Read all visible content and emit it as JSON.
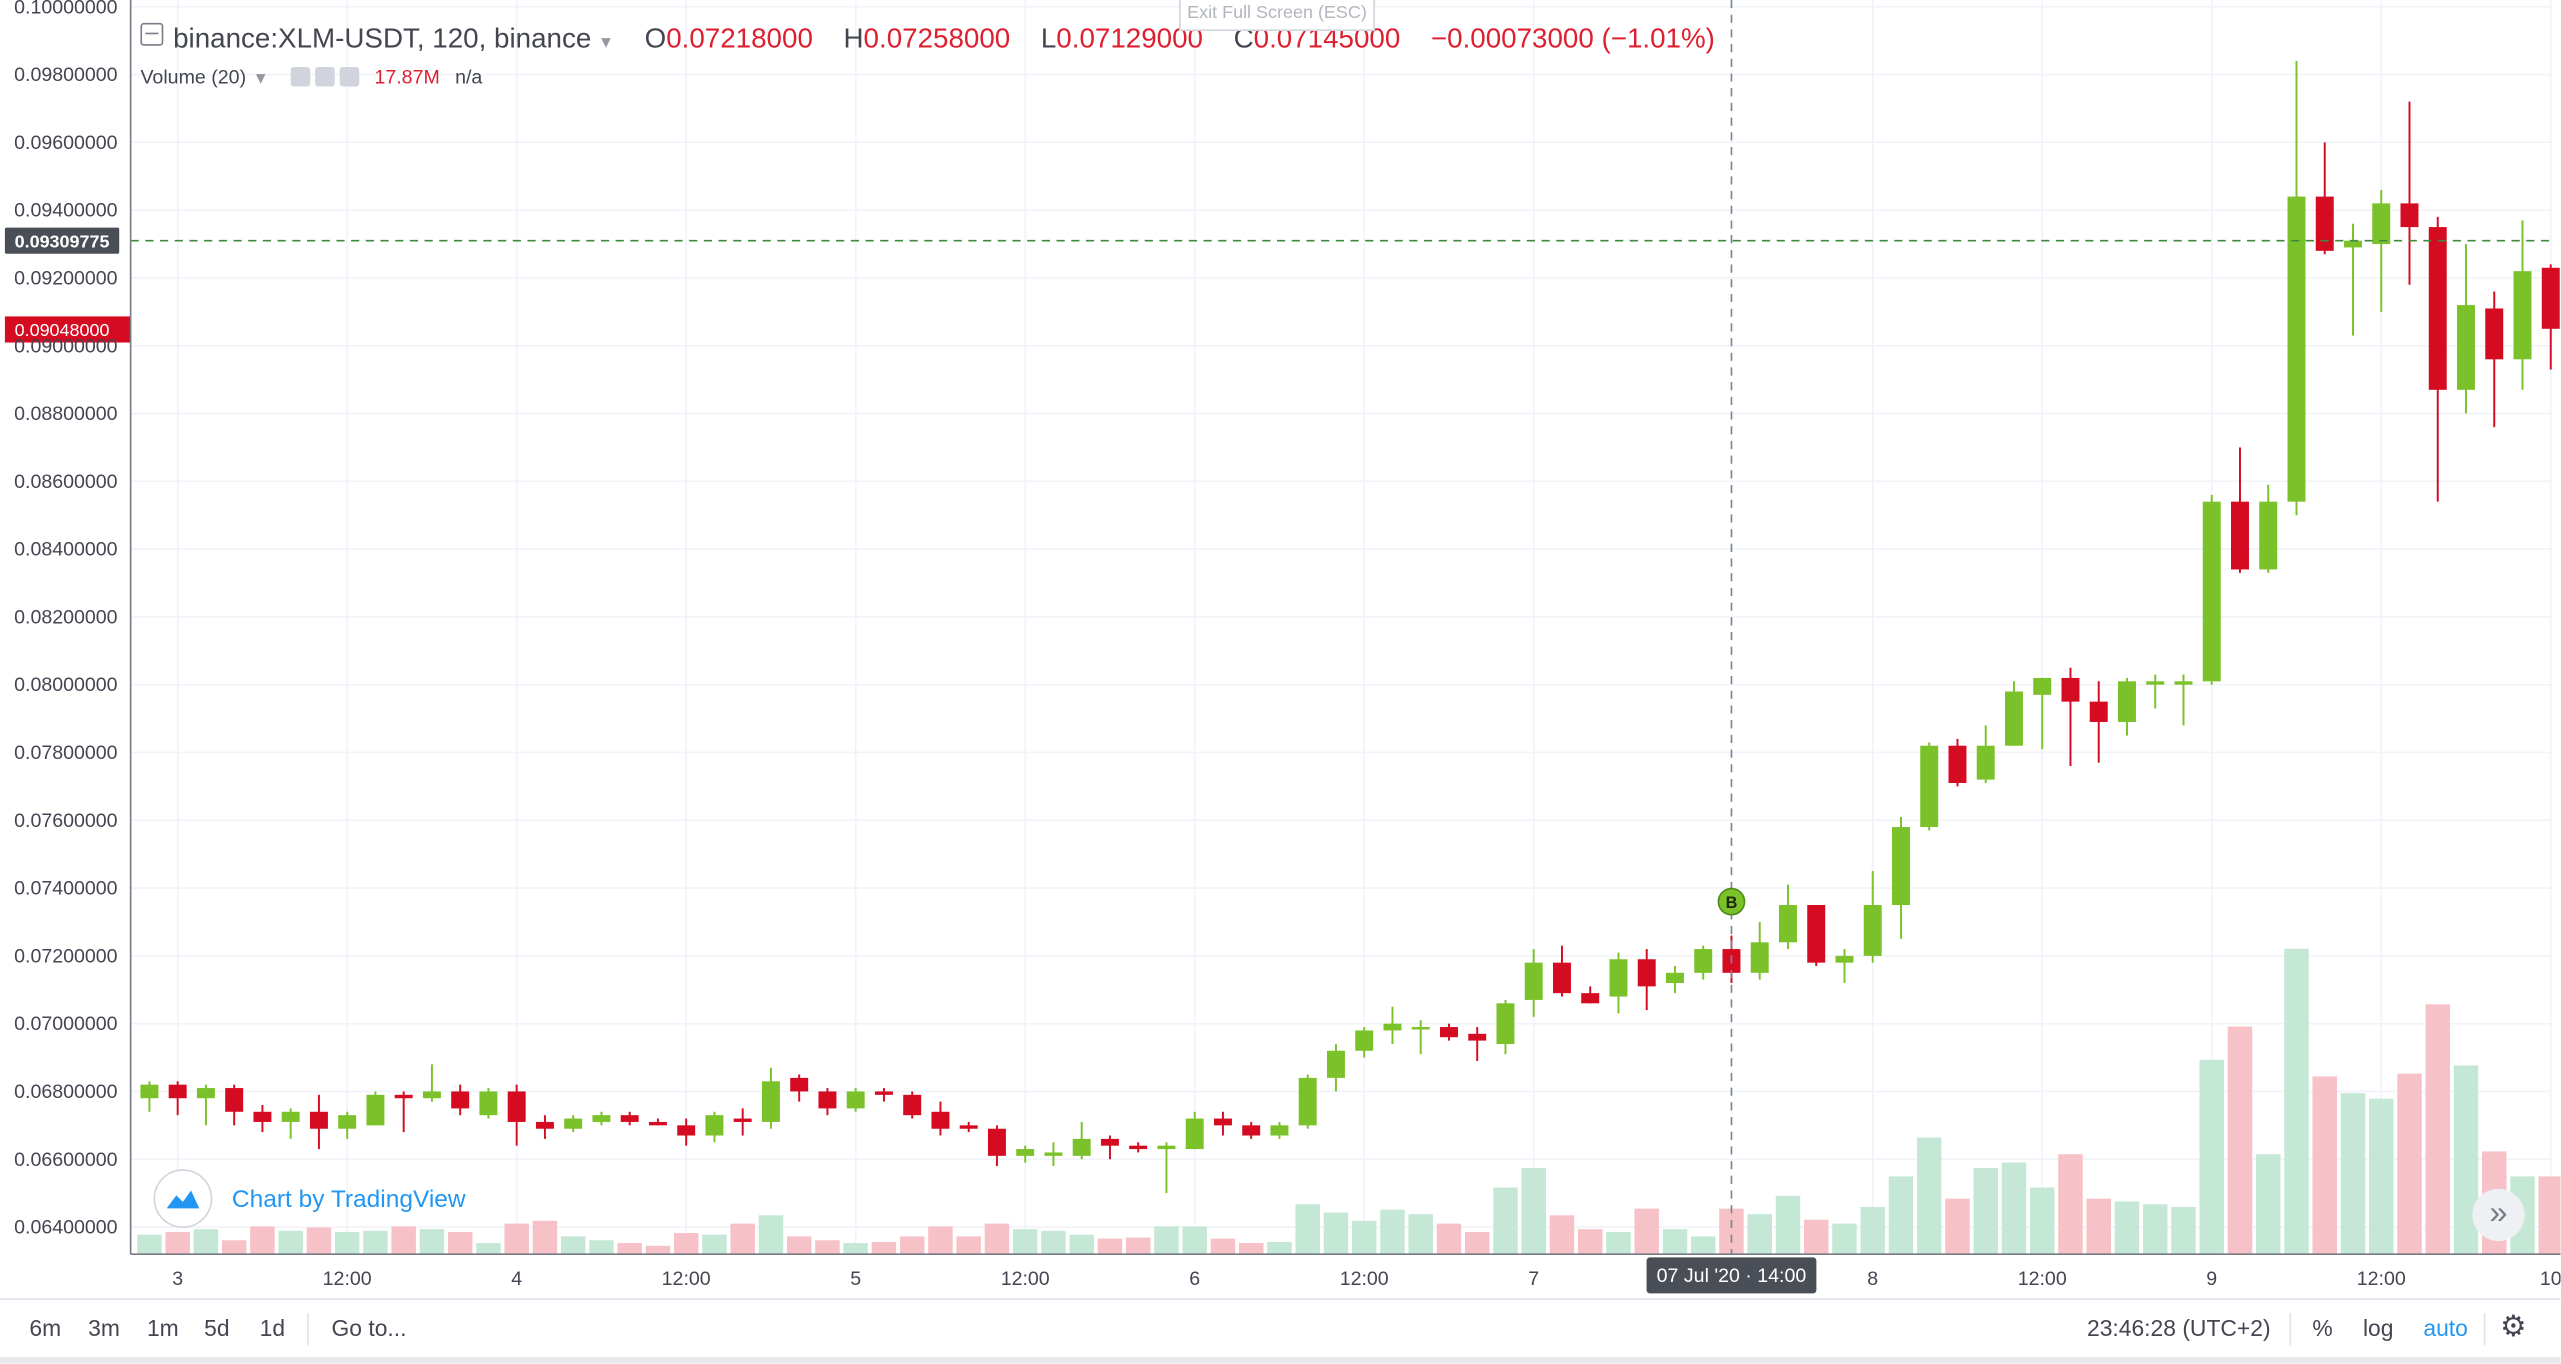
{
  "legend": {
    "symbol": "binance:XLM-USDT, 120, binance",
    "open_label": "O",
    "open": "0.07218000",
    "high_label": "H",
    "high": "0.07258000",
    "low_label": "L",
    "low": "0.07129000",
    "close_label": "C",
    "close": "0.07145000",
    "change": "−0.00073000 (−1.01%)"
  },
  "volume_legend": {
    "label": "Volume (20)",
    "value": "17.87M",
    "na": "n/a"
  },
  "exit_fullscreen": "Exit Full Screen (ESC)",
  "watermark": "Chart by TradingView",
  "toolbar": {
    "ranges": [
      "6m",
      "3m",
      "1m",
      "5d",
      "1d"
    ],
    "goto": "Go to...",
    "clock": "23:46:28 (UTC+2)",
    "percent": "%",
    "log": "log",
    "auto": "auto"
  },
  "crosshair": {
    "time_label": "07 Jul '20 · 14:00",
    "price_label": "0.09309775",
    "price": 0.09309775,
    "bar_index": 56
  },
  "last_price": {
    "label": "0.09048000",
    "price": 0.09048
  },
  "marker": {
    "text": "B",
    "bar_index": 56,
    "price": 0.0736
  },
  "colors": {
    "up": "#7bc22a",
    "down": "#d50b22",
    "vol_up": "#c5e8d6",
    "vol_down": "#f7c2c7",
    "grid": "#f0f3fa",
    "axis_text": "#434651"
  },
  "chart_data": {
    "type": "candlestick",
    "interval": "120",
    "ylim": [
      0.0632,
      0.1002
    ],
    "grid": true,
    "y_ticks": [
      "0.06400000",
      "0.06600000",
      "0.06800000",
      "0.07000000",
      "0.07200000",
      "0.07400000",
      "0.07600000",
      "0.07800000",
      "0.08000000",
      "0.08200000",
      "0.08400000",
      "0.08600000",
      "0.08800000",
      "0.09000000",
      "0.09200000",
      "0.09400000",
      "0.09600000",
      "0.09800000",
      "0.10000000"
    ],
    "x_ticks": [
      {
        "label": "3",
        "bar": 1
      },
      {
        "label": "12:00",
        "bar": 7
      },
      {
        "label": "4",
        "bar": 13
      },
      {
        "label": "12:00",
        "bar": 19
      },
      {
        "label": "5",
        "bar": 25
      },
      {
        "label": "12:00",
        "bar": 31
      },
      {
        "label": "6",
        "bar": 37
      },
      {
        "label": "12:00",
        "bar": 43
      },
      {
        "label": "7",
        "bar": 49
      },
      {
        "label": "8",
        "bar": 61
      },
      {
        "label": "12:00",
        "bar": 67
      },
      {
        "label": "9",
        "bar": 73
      },
      {
        "label": "12:00",
        "bar": 79
      },
      {
        "label": "10",
        "bar": 85
      }
    ],
    "candles": [
      [
        0.0678,
        0.0683,
        0.0674,
        0.0682,
        0.35
      ],
      [
        0.0682,
        0.0683,
        0.0673,
        0.0678,
        0.4
      ],
      [
        0.0678,
        0.0682,
        0.067,
        0.0681,
        0.45
      ],
      [
        0.0681,
        0.0682,
        0.067,
        0.0674,
        0.25
      ],
      [
        0.0674,
        0.0676,
        0.0668,
        0.0671,
        0.5
      ],
      [
        0.0671,
        0.0675,
        0.0666,
        0.0674,
        0.42
      ],
      [
        0.0674,
        0.0679,
        0.0663,
        0.0669,
        0.48
      ],
      [
        0.0669,
        0.0674,
        0.0666,
        0.0673,
        0.4
      ],
      [
        0.067,
        0.068,
        0.067,
        0.0679,
        0.42
      ],
      [
        0.0679,
        0.068,
        0.0668,
        0.0678,
        0.5
      ],
      [
        0.0678,
        0.0688,
        0.0677,
        0.068,
        0.45
      ],
      [
        0.068,
        0.0682,
        0.0673,
        0.0675,
        0.4
      ],
      [
        0.0673,
        0.0681,
        0.0672,
        0.068,
        0.2
      ],
      [
        0.068,
        0.0682,
        0.0664,
        0.0671,
        0.55
      ],
      [
        0.0671,
        0.0673,
        0.0666,
        0.0669,
        0.6
      ],
      [
        0.0669,
        0.0673,
        0.0668,
        0.0672,
        0.32
      ],
      [
        0.0671,
        0.0674,
        0.067,
        0.0673,
        0.25
      ],
      [
        0.0673,
        0.0674,
        0.067,
        0.0671,
        0.2
      ],
      [
        0.0671,
        0.0672,
        0.067,
        0.067,
        0.15
      ],
      [
        0.067,
        0.0672,
        0.0664,
        0.0667,
        0.38
      ],
      [
        0.0667,
        0.0674,
        0.0665,
        0.0673,
        0.35
      ],
      [
        0.0672,
        0.0675,
        0.0667,
        0.0671,
        0.55
      ],
      [
        0.0671,
        0.0687,
        0.0669,
        0.0683,
        0.7
      ],
      [
        0.0684,
        0.0685,
        0.0677,
        0.068,
        0.32
      ],
      [
        0.068,
        0.0681,
        0.0673,
        0.0675,
        0.25
      ],
      [
        0.0675,
        0.0681,
        0.0674,
        0.068,
        0.2
      ],
      [
        0.068,
        0.0681,
        0.0677,
        0.0679,
        0.22
      ],
      [
        0.0679,
        0.068,
        0.0672,
        0.0673,
        0.32
      ],
      [
        0.0674,
        0.0677,
        0.0667,
        0.0669,
        0.5
      ],
      [
        0.067,
        0.0671,
        0.0668,
        0.0669,
        0.32
      ],
      [
        0.0669,
        0.067,
        0.0658,
        0.0661,
        0.55
      ],
      [
        0.0661,
        0.0664,
        0.0659,
        0.0663,
        0.45
      ],
      [
        0.0661,
        0.0665,
        0.0658,
        0.0662,
        0.42
      ],
      [
        0.0661,
        0.0671,
        0.066,
        0.0666,
        0.35
      ],
      [
        0.0666,
        0.0667,
        0.066,
        0.0664,
        0.28
      ],
      [
        0.0664,
        0.0665,
        0.0662,
        0.0663,
        0.3
      ],
      [
        0.0663,
        0.0665,
        0.065,
        0.0664,
        0.5
      ],
      [
        0.0663,
        0.0674,
        0.0663,
        0.0672,
        0.5
      ],
      [
        0.0672,
        0.0674,
        0.0667,
        0.067,
        0.28
      ],
      [
        0.067,
        0.0671,
        0.0666,
        0.0667,
        0.2
      ],
      [
        0.0667,
        0.0671,
        0.0666,
        0.067,
        0.22
      ],
      [
        0.067,
        0.0685,
        0.0669,
        0.0684,
        0.9
      ],
      [
        0.0684,
        0.0694,
        0.068,
        0.0692,
        0.75
      ],
      [
        0.0692,
        0.0699,
        0.069,
        0.0698,
        0.6
      ],
      [
        0.0698,
        0.0705,
        0.0694,
        0.07,
        0.8
      ],
      [
        0.0699,
        0.0701,
        0.0691,
        0.0699,
        0.72
      ],
      [
        0.0699,
        0.07,
        0.0695,
        0.0696,
        0.55
      ],
      [
        0.0697,
        0.0699,
        0.0689,
        0.0695,
        0.4
      ],
      [
        0.0694,
        0.0707,
        0.0691,
        0.0706,
        1.2
      ],
      [
        0.0707,
        0.0722,
        0.0702,
        0.0718,
        1.55
      ],
      [
        0.0718,
        0.0723,
        0.0708,
        0.0709,
        0.7
      ],
      [
        0.0709,
        0.0711,
        0.0706,
        0.0706,
        0.45
      ],
      [
        0.0708,
        0.0721,
        0.0703,
        0.0719,
        0.4
      ],
      [
        0.0719,
        0.0722,
        0.0704,
        0.0711,
        0.82
      ],
      [
        0.0712,
        0.0717,
        0.0709,
        0.0715,
        0.45
      ],
      [
        0.0715,
        0.0723,
        0.0713,
        0.0722,
        0.32
      ],
      [
        0.0722,
        0.0726,
        0.0712,
        0.0715,
        0.82
      ],
      [
        0.0715,
        0.073,
        0.0713,
        0.0724,
        0.72
      ],
      [
        0.0724,
        0.0741,
        0.0722,
        0.0735,
        1.05
      ],
      [
        0.0735,
        0.0735,
        0.0717,
        0.0718,
        0.62
      ],
      [
        0.0718,
        0.0722,
        0.0712,
        0.072,
        0.55
      ],
      [
        0.072,
        0.0745,
        0.0718,
        0.0735,
        0.85
      ],
      [
        0.0735,
        0.0761,
        0.0725,
        0.0758,
        1.4
      ],
      [
        0.0758,
        0.0783,
        0.0757,
        0.0782,
        2.1
      ],
      [
        0.0782,
        0.0784,
        0.077,
        0.0771,
        1.0
      ],
      [
        0.0772,
        0.0788,
        0.0771,
        0.0782,
        1.55
      ],
      [
        0.0782,
        0.0801,
        0.0782,
        0.0798,
        1.65
      ],
      [
        0.0797,
        0.0802,
        0.0781,
        0.0802,
        1.2
      ],
      [
        0.0802,
        0.0805,
        0.0776,
        0.0795,
        1.8
      ],
      [
        0.0795,
        0.0801,
        0.0777,
        0.0789,
        1.0
      ],
      [
        0.0789,
        0.0802,
        0.0785,
        0.0801,
        0.95
      ],
      [
        0.08,
        0.0803,
        0.0793,
        0.0801,
        0.9
      ],
      [
        0.08,
        0.0803,
        0.0788,
        0.0801,
        0.85
      ],
      [
        0.0801,
        0.0856,
        0.08,
        0.0854,
        3.5
      ],
      [
        0.0854,
        0.087,
        0.0833,
        0.0834,
        4.1
      ],
      [
        0.0834,
        0.0859,
        0.0833,
        0.0854,
        1.8
      ],
      [
        0.0854,
        0.0984,
        0.085,
        0.0944,
        5.5
      ],
      [
        0.0944,
        0.096,
        0.0927,
        0.0928,
        3.2
      ],
      [
        0.0929,
        0.0936,
        0.0903,
        0.0931,
        2.9
      ],
      [
        0.093,
        0.0946,
        0.091,
        0.0942,
        2.8
      ],
      [
        0.0942,
        0.0972,
        0.0918,
        0.0935,
        3.25
      ],
      [
        0.0935,
        0.0938,
        0.0854,
        0.0887,
        4.5
      ],
      [
        0.0887,
        0.093,
        0.088,
        0.0912,
        3.4
      ],
      [
        0.0911,
        0.0916,
        0.0876,
        0.0896,
        1.85
      ],
      [
        0.0896,
        0.0937,
        0.0887,
        0.0922,
        1.4
      ],
      [
        0.0923,
        0.0924,
        0.0893,
        0.0905,
        1.4
      ]
    ]
  }
}
